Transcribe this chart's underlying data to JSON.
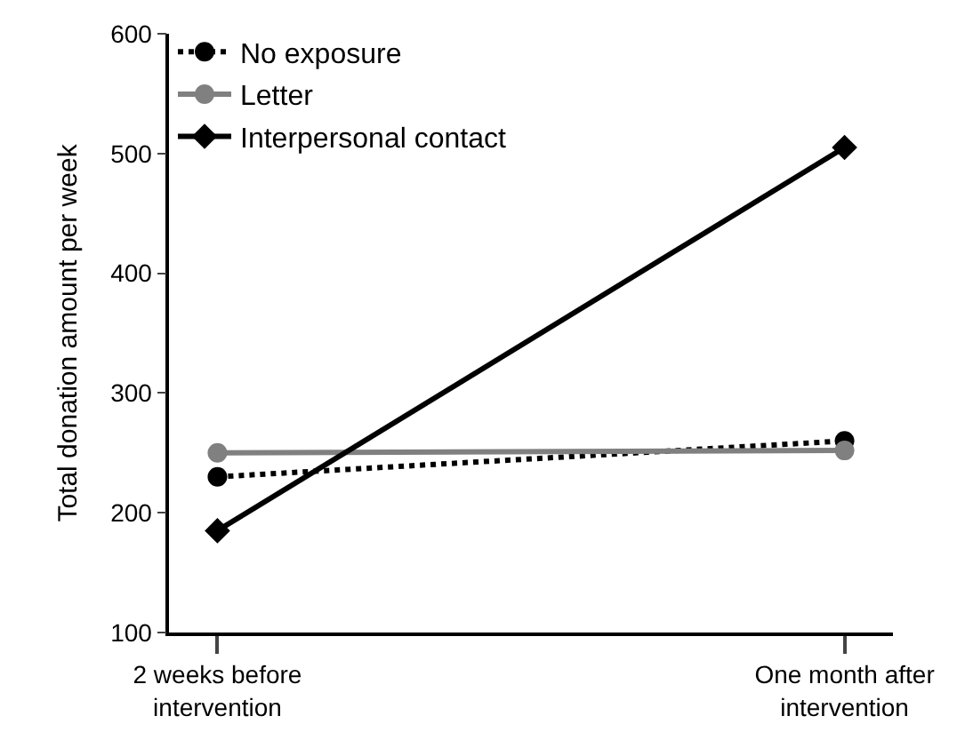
{
  "chart_data": {
    "type": "line",
    "ylabel": "Total donation amount per week",
    "categories": [
      "2 weeks before\nintervention",
      "One month after\nintervention"
    ],
    "series": [
      {
        "name": "No exposure",
        "color": "#000000",
        "values": [
          230,
          260
        ],
        "marker": "circle",
        "line_style": "dotted"
      },
      {
        "name": "Letter",
        "color": "#808080",
        "values": [
          250,
          252
        ],
        "marker": "circle",
        "line_style": "solid"
      },
      {
        "name": "Interpersonal contact",
        "color": "#000000",
        "values": [
          185,
          505
        ],
        "marker": "diamond",
        "line_style": "solid"
      }
    ],
    "ylim": [
      100,
      600
    ],
    "yticks": [
      100,
      200,
      300,
      400,
      500,
      600
    ],
    "legend": "top left"
  }
}
